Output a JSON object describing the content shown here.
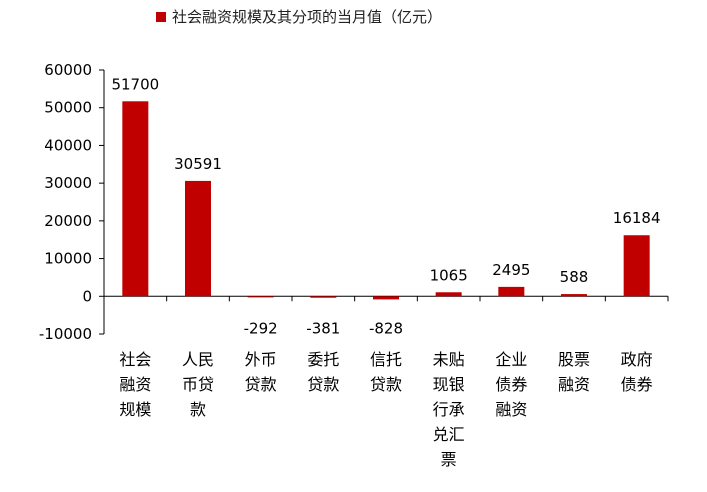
{
  "chart_data": {
    "type": "bar",
    "series": [
      {
        "name": "社会融资规模及其分项的当月值（亿元）",
        "color": "#c00000",
        "values": [
          51700,
          30591,
          -292,
          -381,
          -828,
          1065,
          2495,
          588,
          16184
        ]
      }
    ],
    "categories": [
      [
        "社会",
        "融资",
        "规模"
      ],
      [
        "人民",
        "币贷",
        "款"
      ],
      [
        "外币",
        "贷款"
      ],
      [
        "委托",
        "贷款"
      ],
      [
        "信托",
        "贷款"
      ],
      [
        "未贴",
        "现银",
        "行承",
        "兑汇",
        "票"
      ],
      [
        "企业",
        "债券",
        "融资"
      ],
      [
        "股票",
        "融资"
      ],
      [
        "政府",
        "债券"
      ]
    ],
    "data_labels": [
      "51700",
      "30591",
      "-292",
      "-381",
      "-828",
      "1065",
      "2495",
      "588",
      "16184"
    ],
    "yticks": [
      "60000",
      "50000",
      "40000",
      "30000",
      "20000",
      "10000",
      "0",
      "-10000"
    ],
    "ylim": [
      -10000,
      60000
    ],
    "grid": false,
    "legend_position": "top"
  }
}
